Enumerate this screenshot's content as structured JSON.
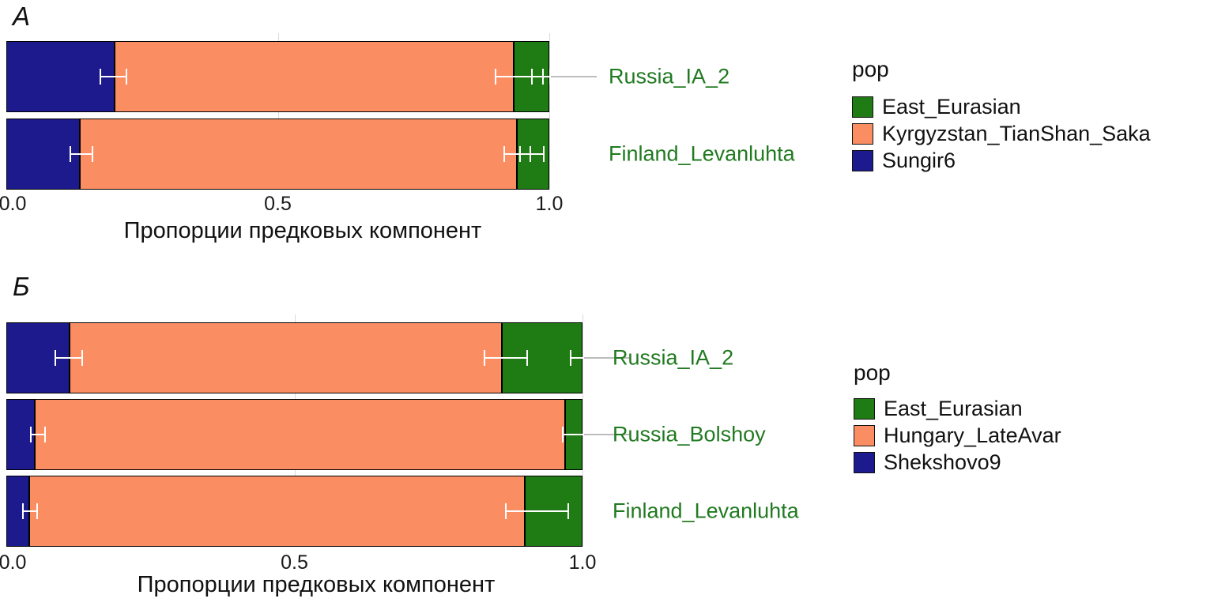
{
  "chart_data": [
    {
      "type": "bar",
      "orientation": "horizontal",
      "stacked": true,
      "panel_label": "А",
      "xlabel": "Пропорции предковых компонент",
      "xlim": [
        0,
        1
      ],
      "x_ticks": [
        0,
        0.5,
        1
      ],
      "x_tick_labels": [
        "0.0",
        "0.5",
        "1.0"
      ],
      "categories": [
        "Russia_IA_2",
        "Finland_Levanluhta"
      ],
      "series": [
        {
          "name": "Sungir6",
          "color": "#1c1a8c",
          "values": [
            0.2,
            0.135
          ]
        },
        {
          "name": "Kyrgyzstan_TianShan_Saka",
          "color": "#fb8d62",
          "values": [
            0.735,
            0.805
          ]
        },
        {
          "name": "East_Eurasian",
          "color": "#1f7b13",
          "values": [
            0.065,
            0.06
          ]
        }
      ],
      "error_bars": [
        [
          {
            "center": 0.197,
            "half": 0.025
          },
          {
            "center": 0.945,
            "half": 0.045
          },
          {
            "center": 0.985,
            "half": 0.018
          }
        ],
        [
          {
            "center": 0.138,
            "half": 0.022
          },
          {
            "center": 0.941,
            "half": 0.026
          },
          {
            "center": 0.968,
            "half": 0.023
          }
        ]
      ],
      "right_tails": [
        true,
        false
      ],
      "legend": {
        "title": "pop",
        "position": "right",
        "items": [
          {
            "label": "East_Eurasian",
            "color": "#1f7b13"
          },
          {
            "label": "Kyrgyzstan_TianShan_Saka",
            "color": "#fb8d62"
          },
          {
            "label": "Sungir6",
            "color": "#1c1a8c"
          }
        ]
      }
    },
    {
      "type": "bar",
      "orientation": "horizontal",
      "stacked": true,
      "panel_label": "Б",
      "xlabel": "Пропорции предковых компонент",
      "xlim": [
        0,
        1
      ],
      "x_ticks": [
        0,
        0.5,
        1
      ],
      "x_tick_labels": [
        "0.0",
        "0.5",
        "1.0"
      ],
      "categories": [
        "Russia_IA_2",
        "Russia_Bolshoy",
        "Finland_Levanluhta"
      ],
      "series": [
        {
          "name": "Shekshovo9",
          "color": "#1c1a8c",
          "values": [
            0.11,
            0.05,
            0.04
          ]
        },
        {
          "name": "Hungary_LateAvar",
          "color": "#fb8d62",
          "values": [
            0.75,
            0.92,
            0.86
          ]
        },
        {
          "name": "East_Eurasian",
          "color": "#1f7b13",
          "values": [
            0.14,
            0.03,
            0.1
          ]
        }
      ],
      "error_bars": [
        [
          {
            "center": 0.108,
            "half": 0.025
          },
          {
            "center": 0.867,
            "half": 0.038
          },
          {
            "center": 0.993,
            "half": 0.015
          }
        ],
        [
          {
            "center": 0.055,
            "half": 0.014
          },
          {
            "center": 0.988,
            "half": 0.024
          }
        ],
        [
          {
            "center": 0.041,
            "half": 0.014
          },
          {
            "center": 0.921,
            "half": 0.056
          }
        ]
      ],
      "right_tails": [
        true,
        true,
        false
      ],
      "legend": {
        "title": "pop",
        "position": "right",
        "items": [
          {
            "label": "East_Eurasian",
            "color": "#1f7b13"
          },
          {
            "label": "Hungary_LateAvar",
            "color": "#fb8d62"
          },
          {
            "label": "Shekshovo9",
            "color": "#1c1a8c"
          }
        ]
      }
    }
  ],
  "style_colors": {
    "row_label_green": "#217a21",
    "error_bar_white": "#ffffff",
    "tail_gray": "#bcbcbc"
  }
}
